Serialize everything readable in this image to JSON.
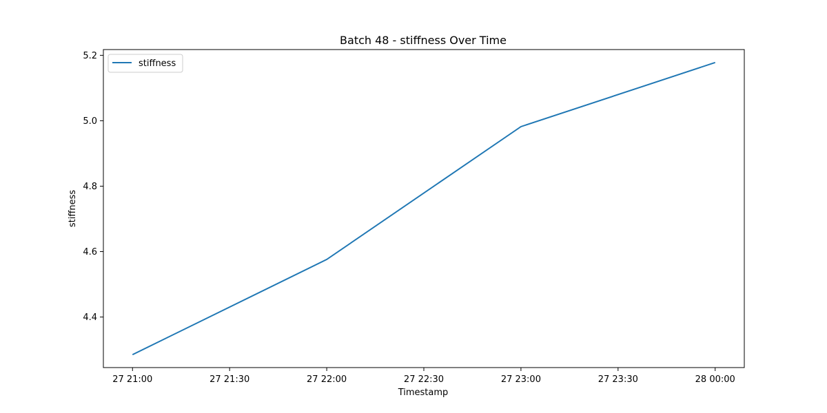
{
  "chart_data": {
    "type": "line",
    "title": "Batch 48 - stiffness Over Time",
    "xlabel": "Timestamp",
    "ylabel": "stiffness",
    "x": [
      "27 21:00",
      "27 22:00",
      "27 23:00",
      "28 00:00"
    ],
    "x_minutes": [
      0,
      60,
      120,
      180
    ],
    "series": [
      {
        "name": "stiffness",
        "color": "#1f77b4",
        "values": [
          4.285,
          4.576,
          4.982,
          5.178
        ]
      }
    ],
    "xticks": [
      "27 21:00",
      "27 21:30",
      "27 22:00",
      "27 22:30",
      "27 23:00",
      "27 23:30",
      "28 00:00"
    ],
    "yticks": [
      "4.4",
      "4.6",
      "4.8",
      "5.0",
      "5.2"
    ],
    "ylim": [
      4.2455,
      5.2176
    ],
    "grid": false,
    "legend_position": "upper left"
  }
}
